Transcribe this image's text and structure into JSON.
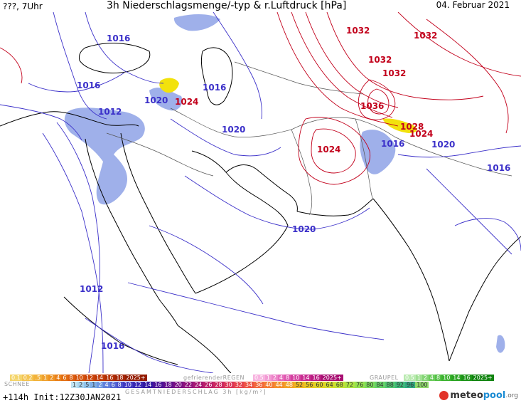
{
  "header": {
    "left": "???, 7Uhr",
    "title": "3h Niederschlagsmenge/-typ & r.Luftdruck [hPa]",
    "date": "04. Februar 2021"
  },
  "map": {
    "isobars_red": [
      "1032",
      "1032",
      "1032",
      "1032",
      "1036",
      "1028",
      "1024",
      "1024",
      "1024"
    ],
    "isobars_blue": [
      "1016",
      "1016",
      "1016",
      "1012",
      "1020",
      "1020",
      "1016",
      "1020",
      "1016",
      "1020",
      "1012",
      "1016"
    ],
    "colors": {
      "high": "#c2001b",
      "low": "#3b30c9",
      "rain": "#7f95e3",
      "snow": "#f2e20c"
    }
  },
  "legend": {
    "schnee_label": "SCHNEE",
    "schnee_values": [
      "0.1",
      "0.2",
      ".5",
      "1",
      "2",
      "4",
      "6",
      "8",
      "10",
      "12",
      "14",
      "16",
      "18",
      "2025+"
    ],
    "regen_label": "gefrierenderREGEN",
    "regen_values": [
      "0.5",
      "1",
      "2",
      "4",
      "8",
      "10",
      "14",
      "16",
      "2025+"
    ],
    "graupel_label": "GRAUPEL",
    "graupel_values": [
      "0.5",
      "1",
      "2",
      "4",
      "8",
      "10",
      "14",
      "16",
      "2025+"
    ],
    "rain_values": [
      "1",
      "2",
      "5",
      "1",
      "2",
      "4",
      "6",
      "8",
      "10",
      "12",
      "14",
      "16",
      "18",
      "20",
      "22",
      "24",
      "26",
      "28",
      "30",
      "32",
      "34",
      "36",
      "40",
      "44",
      "48",
      "52",
      "56",
      "60",
      "64",
      "68",
      "72",
      "76",
      "80",
      "84",
      "88",
      "92",
      "96",
      "100"
    ],
    "total_label": "GESAMTNIEDERSCHLAG  3h  [kg/m²]",
    "run": "+114h Init:12Z30JAN2021",
    "logo_meteo": "meteo",
    "logo_pool": "pool",
    "logo_org": ".org"
  }
}
